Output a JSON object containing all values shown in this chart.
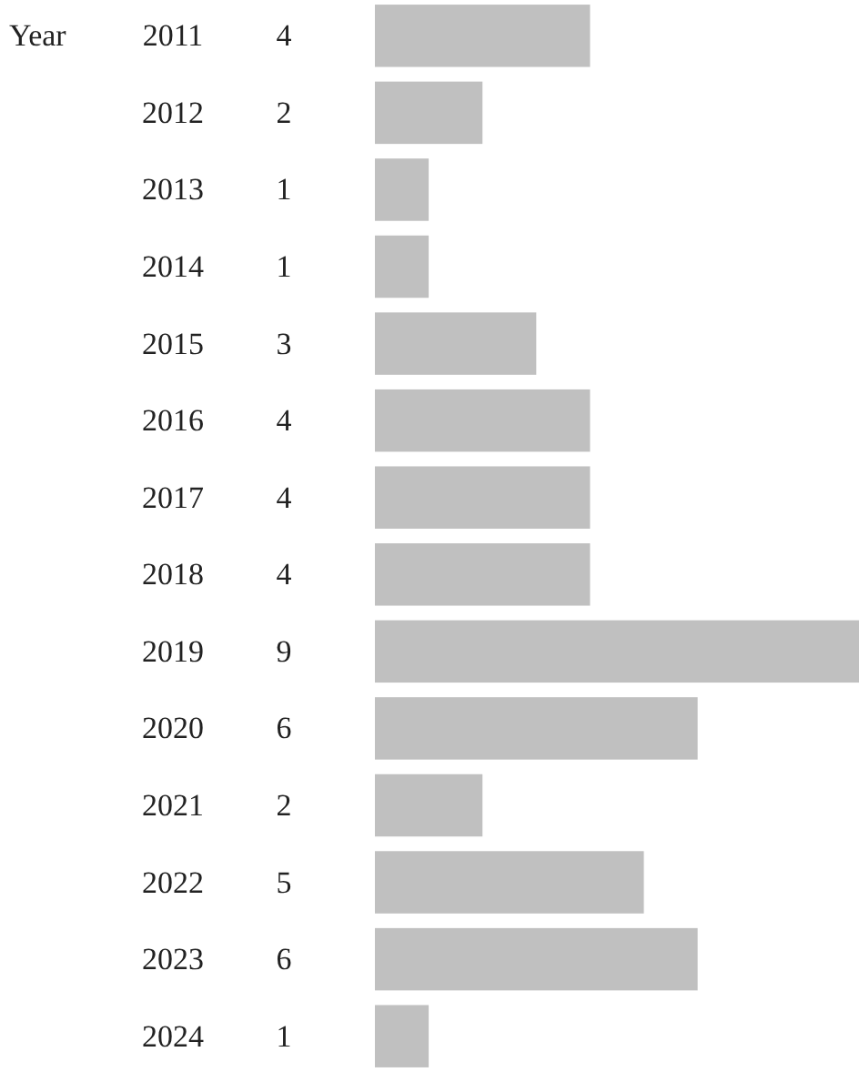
{
  "chart_data": {
    "type": "bar",
    "orientation": "horizontal",
    "ylabel": "Year",
    "categories": [
      "2011",
      "2012",
      "2013",
      "2014",
      "2015",
      "2016",
      "2017",
      "2018",
      "2019",
      "2020",
      "2021",
      "2022",
      "2023",
      "2024"
    ],
    "values": [
      4,
      2,
      1,
      1,
      3,
      4,
      4,
      4,
      9,
      6,
      2,
      5,
      6,
      1
    ],
    "color": "#c0c0c0",
    "data_labels": true
  }
}
